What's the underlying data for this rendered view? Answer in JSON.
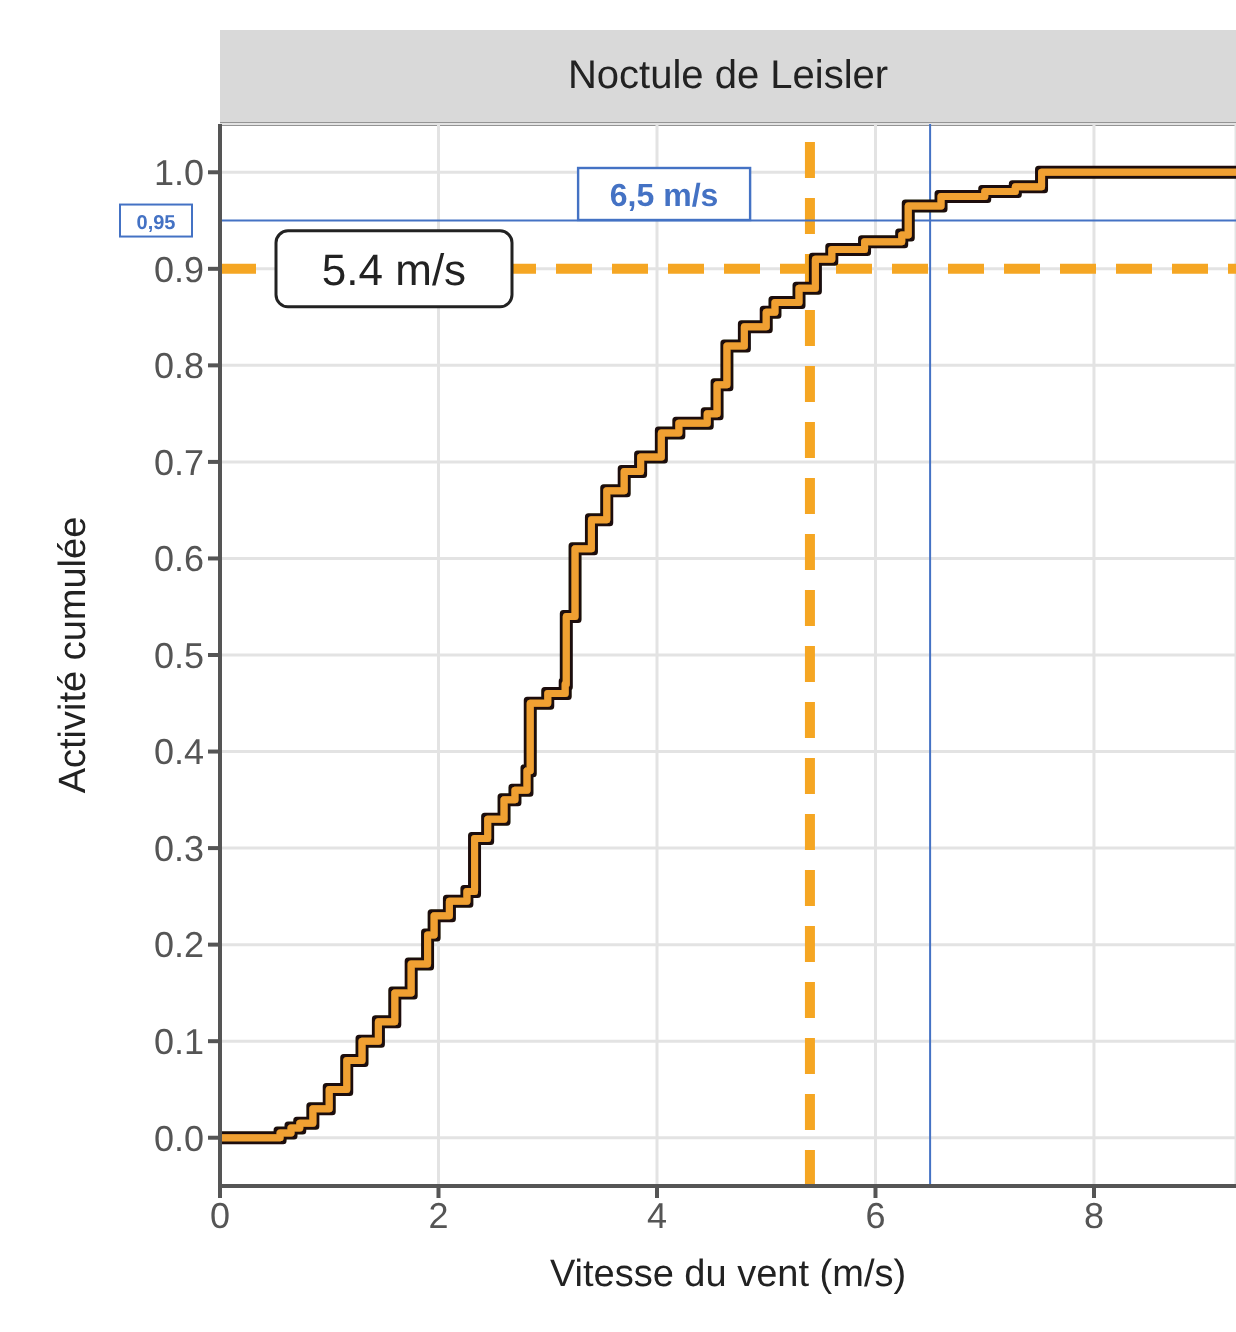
{
  "chart_data": {
    "type": "step",
    "title": "Noctule de Leisler",
    "xlabel": "Vitesse du vent (m/s)",
    "ylabel": "Activité cumulée",
    "series": [
      {
        "color": "#f0a030",
        "x": [
          0,
          0.42,
          0.55,
          0.65,
          0.73,
          0.85,
          1.0,
          1.16,
          1.3,
          1.45,
          1.6,
          1.75,
          1.9,
          1.96,
          2.1,
          2.26,
          2.33,
          2.45,
          2.6,
          2.7,
          2.81,
          2.84,
          3.0,
          3.16,
          3.17,
          3.25,
          3.4,
          3.54,
          3.7,
          3.85,
          4.04,
          4.2,
          4.46,
          4.55,
          4.64,
          4.8,
          5.0,
          5.08,
          5.3,
          5.45,
          5.6,
          5.9,
          6.24,
          6.3,
          6.6,
          7.0,
          7.28,
          7.52,
          9.3
        ],
        "values": [
          0,
          0,
          0.005,
          0.01,
          0.015,
          0.03,
          0.05,
          0.08,
          0.1,
          0.12,
          0.15,
          0.18,
          0.21,
          0.23,
          0.245,
          0.255,
          0.31,
          0.33,
          0.35,
          0.36,
          0.38,
          0.45,
          0.46,
          0.47,
          0.54,
          0.61,
          0.64,
          0.67,
          0.69,
          0.705,
          0.73,
          0.74,
          0.75,
          0.78,
          0.82,
          0.84,
          0.855,
          0.865,
          0.88,
          0.91,
          0.92,
          0.928,
          0.935,
          0.965,
          0.975,
          0.98,
          0.985,
          1.0,
          1.0
        ]
      }
    ],
    "xlim": [
      0,
      9.3
    ],
    "xticks": [
      0,
      2,
      4,
      6,
      8
    ],
    "ylim": [
      -0.05,
      1.05
    ],
    "yticks": [
      {
        "value": 0,
        "label": "0.0"
      },
      0.1,
      0.2,
      0.3,
      0.4,
      0.5,
      0.6,
      0.7,
      0.8,
      0.9,
      {
        "value": 1,
        "label": "1.0"
      }
    ],
    "grid": true,
    "marker": "none",
    "line_style": "solid",
    "ref_lines": [
      {
        "axis": "y",
        "value": 0.9,
        "label": "5.4 m/s",
        "color": "#f5a623",
        "line_style": "dashed"
      },
      {
        "axis": "x",
        "value": 5.4,
        "color": "#f5a623",
        "line_style": "dashed"
      },
      {
        "axis": "y",
        "value": 0.95,
        "label": "0,95",
        "color": "#4472c4",
        "line_style": "solid"
      },
      {
        "axis": "x",
        "value": 6.5,
        "label": "6,5 m/s",
        "color": "#4472c4",
        "line_style": "solid"
      }
    ]
  }
}
